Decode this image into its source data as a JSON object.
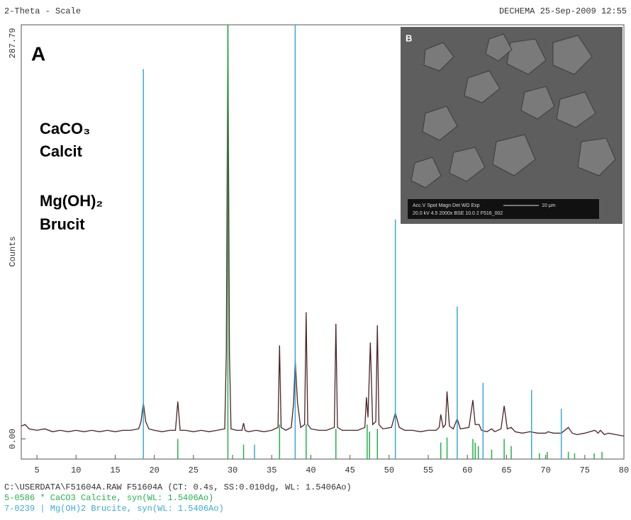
{
  "chart_data": {
    "type": "line",
    "header_left": "2-Theta - Scale",
    "header_right": "DECHEMA 25-Sep-2009 12:55",
    "ylabel": "Counts",
    "annotations": [
      "A",
      "CaCO₃",
      "Calcit",
      "Mg(OH)₂",
      "Brucit"
    ],
    "inset": {
      "label": "B",
      "info_top": "Acc.V  Spot Magn   Det  WD  Exp",
      "info_bottom": "20.0 kV 4.5  2000x   BSE 10.0  2    F516_002",
      "scale": "10 µm"
    },
    "xlim": [
      3,
      80
    ],
    "xticks": [
      5,
      10,
      15,
      20,
      25,
      30,
      35,
      40,
      45,
      50,
      55,
      60,
      65,
      70,
      75,
      80
    ],
    "ylim": [
      -14,
      287.79
    ],
    "yticks": [
      {
        "value": 0,
        "label": "0.00"
      },
      {
        "value": 287.79,
        "label": "287.79"
      }
    ],
    "series": [
      {
        "name": "C:\\USERDATA\\F51604A.RAW F51604A (CT:  0.4s, SS:0.010dg, WL: 1.5406Ao)",
        "type": "line",
        "color": "#4a2326",
        "x": [
          3.0,
          3.5,
          4.0,
          5,
          6,
          7,
          8,
          9,
          10,
          11,
          12,
          13,
          14,
          15,
          16,
          17,
          18,
          18.3,
          18.6,
          18.9,
          19.3,
          20,
          21,
          22,
          22.7,
          23.0,
          23.3,
          24,
          25,
          26,
          27,
          28,
          29.0,
          29.2,
          29.4,
          29.6,
          29.8,
          30.5,
          31.2,
          31.4,
          31.6,
          32,
          33,
          34,
          35,
          35.8,
          36.0,
          36.2,
          36.8,
          37.5,
          37.8,
          38.0,
          38.3,
          38.7,
          39.2,
          39.4,
          39.6,
          40,
          41,
          42,
          43.0,
          43.2,
          43.4,
          44,
          45,
          46,
          46.9,
          47.1,
          47.3,
          47.6,
          47.9,
          48.3,
          48.5,
          48.7,
          49.2,
          50.3,
          50.8,
          51.3,
          52,
          53,
          54,
          55,
          56,
          56.4,
          56.6,
          56.9,
          57.2,
          57.4,
          57.7,
          58.2,
          58.7,
          59.1,
          60.2,
          60.7,
          61.0,
          61.5,
          61.8,
          62.5,
          63.1,
          63.5,
          64.3,
          64.7,
          65.1,
          65.6,
          66.1,
          67,
          68,
          69,
          70,
          70.3,
          71,
          72,
          72.9,
          73.4,
          74,
          75,
          76.3,
          76.7,
          77.0,
          77.5,
          78,
          79,
          80
        ],
        "values": [
          9,
          10,
          7,
          6,
          7,
          5,
          6,
          5,
          6,
          5,
          6,
          5,
          6,
          5,
          6,
          6,
          7,
          12,
          25,
          12,
          7,
          6,
          5,
          6,
          6,
          26,
          6,
          6,
          5,
          6,
          5,
          6,
          7,
          60,
          288,
          60,
          7,
          6,
          6,
          11,
          6,
          5,
          6,
          5,
          6,
          8,
          65,
          8,
          6,
          8,
          25,
          55,
          25,
          8,
          10,
          88,
          10,
          7,
          6,
          6,
          8,
          80,
          8,
          6,
          6,
          6,
          8,
          29,
          15,
          67,
          10,
          12,
          79,
          10,
          7,
          8,
          18,
          8,
          6,
          6,
          5,
          6,
          6,
          8,
          17,
          8,
          10,
          33,
          9,
          7,
          14,
          7,
          8,
          27,
          10,
          10,
          6,
          5,
          7,
          5,
          7,
          23,
          7,
          8,
          5,
          4,
          5,
          4,
          4,
          5,
          4,
          4,
          8,
          4,
          3,
          4,
          6,
          4,
          6,
          3,
          4,
          3,
          2
        ]
      },
      {
        "name": "5-0586 * CaCO3 Calcite, syn(WL: 1.5406Ao)",
        "type": "stick",
        "color": "#22b24c",
        "x": [
          23.0,
          29.4,
          31.4,
          36.0,
          39.4,
          43.2,
          47.2,
          47.5,
          48.5,
          56.6,
          57.4,
          60.7,
          61.0,
          61.4,
          63.1,
          64.7,
          65.6,
          69.2,
          70.2,
          72.9,
          73.7,
          76.2,
          77.2
        ],
        "values": [
          0,
          287.79,
          -4,
          10,
          10,
          7,
          10,
          5,
          7,
          -2.5,
          1,
          0,
          -2.5,
          -5,
          -7.5,
          0,
          -5,
          -10,
          -9,
          -9,
          -10,
          -10,
          -9
        ]
      },
      {
        "name": "7-0239 | Mg(OH)2 Brucite, syn(WL: 1.5406Ao)",
        "type": "stick",
        "color": "#39a9dc",
        "x": [
          18.6,
          32.8,
          38.0,
          50.8,
          58.7,
          62.0,
          68.2,
          72.0
        ],
        "values": [
          257,
          -4,
          287.79,
          152.5,
          92,
          39,
          34,
          21
        ]
      }
    ]
  }
}
